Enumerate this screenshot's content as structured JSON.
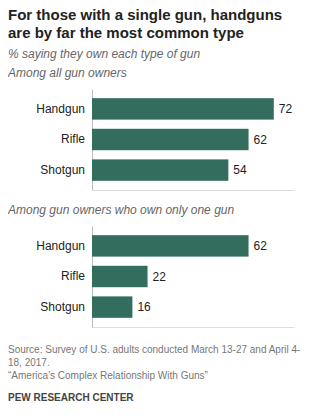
{
  "header": {
    "title": "For those with a single gun, handguns are by far the most common type",
    "subtitle": "% saying they own each type of gun"
  },
  "chart_data": [
    {
      "type": "bar",
      "orientation": "horizontal",
      "title": "Among all gun owners",
      "categories": [
        "Handgun",
        "Rifle",
        "Shotgun"
      ],
      "values": [
        72,
        62,
        54
      ],
      "color": "#336d5d",
      "xlim": [
        0,
        80
      ],
      "data_labels": true,
      "tick_labels": "y",
      "grid": false
    },
    {
      "type": "bar",
      "orientation": "horizontal",
      "title": "Among gun owners who own only one gun",
      "categories": [
        "Handgun",
        "Rifle",
        "Shotgun"
      ],
      "values": [
        62,
        22,
        16
      ],
      "color": "#336d5d",
      "xlim": [
        0,
        80
      ],
      "data_labels": true,
      "tick_labels": "y",
      "grid": false
    }
  ],
  "footer": {
    "source": [
      "Source: Survey of U.S. adults conducted March 13-27 and April 4-18, 2017.",
      "“America’s Complex Relationship With Guns”"
    ],
    "credit": "PEW RESEARCH CENTER"
  }
}
